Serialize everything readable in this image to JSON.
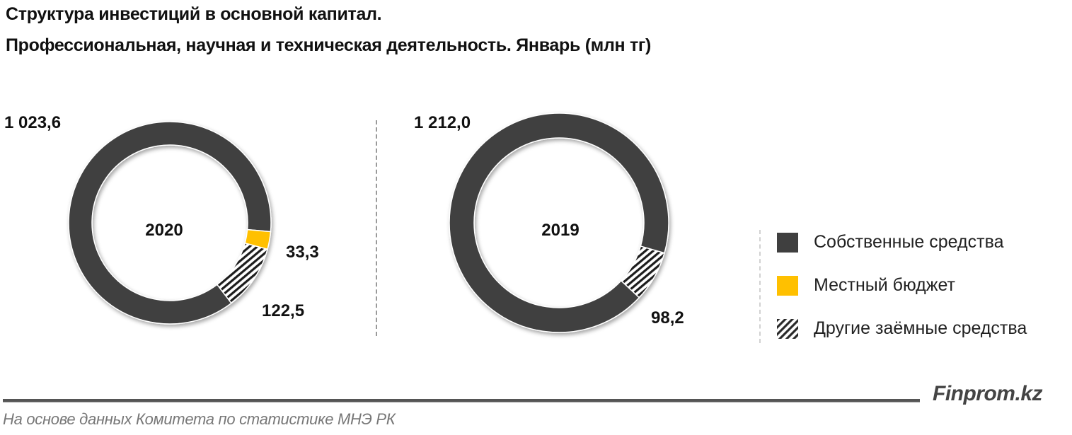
{
  "title": {
    "line1": "Структура инвестиций в основной капитал.",
    "line2": "Профессиональная, научная  и техническая деятельность. Январь (млн тг)"
  },
  "charts": [
    {
      "year": "2020",
      "labels": {
        "own": "1 023,6",
        "local": "33,3",
        "other": "122,5"
      }
    },
    {
      "year": "2019",
      "labels": {
        "own": "1 212,0",
        "other": "98,2"
      }
    }
  ],
  "legend": [
    {
      "label": "Собственные средства",
      "color": "#3f3f3f",
      "pattern": "solid"
    },
    {
      "label": "Местный бюджет",
      "color": "#ffc000",
      "pattern": "solid"
    },
    {
      "label": "Другие заёмные средства",
      "color": "#3f3f3f",
      "pattern": "hatched"
    }
  ],
  "footer": {
    "brand": "Finprom.kz",
    "source": "На основе данных  Комитета по статистике МНЭ РК"
  },
  "chart_data": [
    {
      "type": "pie",
      "subtype": "donut",
      "title": "Структура инвестиций в основной капитал. Профессиональная, научная и техническая деятельность. Январь (млн тг)",
      "center_label": "2020",
      "categories": [
        "Собственные средства",
        "Местный бюджет",
        "Другие заёмные средства"
      ],
      "values": [
        1023.6,
        33.3,
        122.5
      ],
      "colors": [
        "#3f3f3f",
        "#ffc000",
        "hatched-black-white"
      ],
      "unit": "млн тг",
      "legend_position": "right"
    },
    {
      "type": "pie",
      "subtype": "donut",
      "title": "Структура инвестиций в основной капитал. Профессиональная, научная и техническая деятельность. Январь (млн тг)",
      "center_label": "2019",
      "categories": [
        "Собственные средства",
        "Местный бюджет",
        "Другие заёмные средства"
      ],
      "values": [
        1212.0,
        0,
        98.2
      ],
      "colors": [
        "#3f3f3f",
        "#ffc000",
        "hatched-black-white"
      ],
      "unit": "млн тг",
      "legend_position": "right"
    }
  ]
}
